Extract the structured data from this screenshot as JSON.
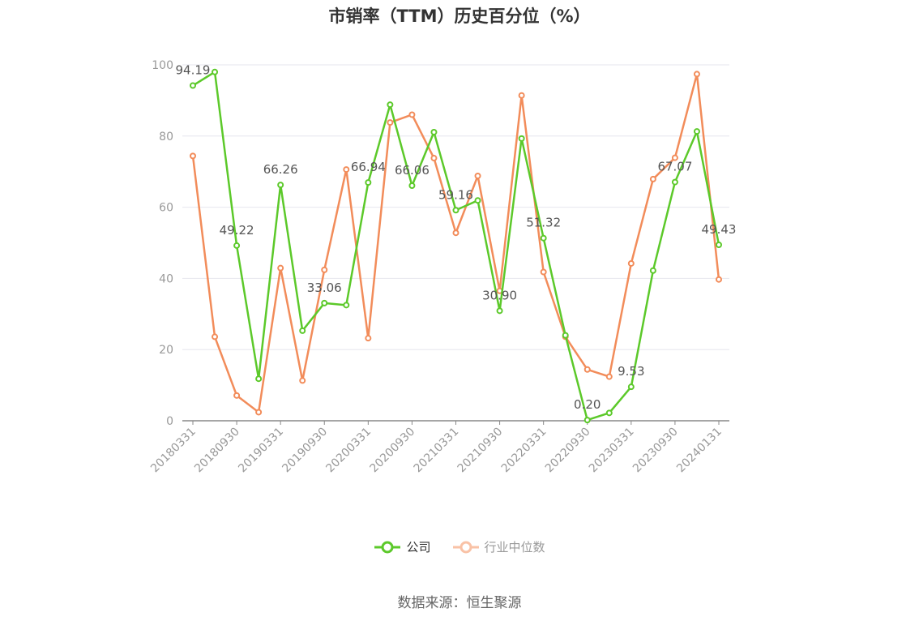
{
  "title": "市销率（TTM）历史百分位（%）",
  "source": "数据来源：恒生聚源",
  "legend": {
    "company_label": "公司",
    "industry_label": "行业中位数"
  },
  "colors": {
    "company": "#5cc92a",
    "industry": "#f28c5a",
    "legend_industry": "#f9c2a6",
    "grid": "#e6e6ee",
    "axis": "#888888",
    "tick_text": "#999999",
    "label_text": "#555555"
  },
  "chart_data": {
    "type": "line",
    "title": "市销率（TTM）历史百分位（%）",
    "xlabel": "",
    "ylabel": "",
    "ylim": [
      0,
      100
    ],
    "yticks": [
      0,
      20,
      40,
      60,
      80,
      100
    ],
    "grid": true,
    "legend_position": "bottom",
    "x": [
      "20180331",
      "20180630",
      "20180930",
      "20181231",
      "20190331",
      "20190630",
      "20190930",
      "20191231",
      "20200331",
      "20200630",
      "20200930",
      "20201231",
      "20210331",
      "20210630",
      "20210930",
      "20211231",
      "20220331",
      "20220630",
      "20220930",
      "20221231",
      "20230331",
      "20230630",
      "20230930",
      "20231231",
      "20240131"
    ],
    "x_tick_labels": [
      "20180331",
      "20180930",
      "20190331",
      "20190930",
      "20200331",
      "20200930",
      "20210331",
      "20210930",
      "20220331",
      "20220930",
      "20230331",
      "20230930",
      "20240131"
    ],
    "series": [
      {
        "name": "公司",
        "values": [
          94.19,
          98.0,
          49.22,
          11.8,
          66.26,
          25.3,
          33.06,
          32.5,
          66.94,
          88.8,
          66.06,
          81.1,
          59.16,
          61.9,
          30.9,
          79.3,
          51.32,
          24.0,
          0.2,
          2.2,
          9.53,
          42.2,
          67.07,
          81.3,
          49.43
        ]
      },
      {
        "name": "行业中位数",
        "values": [
          74.4,
          23.6,
          7.1,
          2.4,
          42.9,
          11.3,
          42.4,
          70.6,
          23.2,
          83.8,
          86.0,
          73.8,
          52.8,
          68.8,
          36.5,
          91.4,
          41.8,
          23.6,
          14.4,
          12.4,
          44.2,
          67.9,
          73.9,
          97.4,
          39.7
        ]
      }
    ],
    "data_labels": [
      {
        "index": 0,
        "text": "94.19"
      },
      {
        "index": 2,
        "text": "49.22"
      },
      {
        "index": 4,
        "text": "66.26"
      },
      {
        "index": 6,
        "text": "33.06"
      },
      {
        "index": 8,
        "text": "66.94"
      },
      {
        "index": 10,
        "text": "66.06"
      },
      {
        "index": 12,
        "text": "59.16"
      },
      {
        "index": 14,
        "text": "30.90"
      },
      {
        "index": 16,
        "text": "51.32"
      },
      {
        "index": 18,
        "text": "0.20"
      },
      {
        "index": 20,
        "text": "9.53"
      },
      {
        "index": 22,
        "text": "67.07"
      },
      {
        "index": 24,
        "text": "49.43"
      }
    ]
  }
}
